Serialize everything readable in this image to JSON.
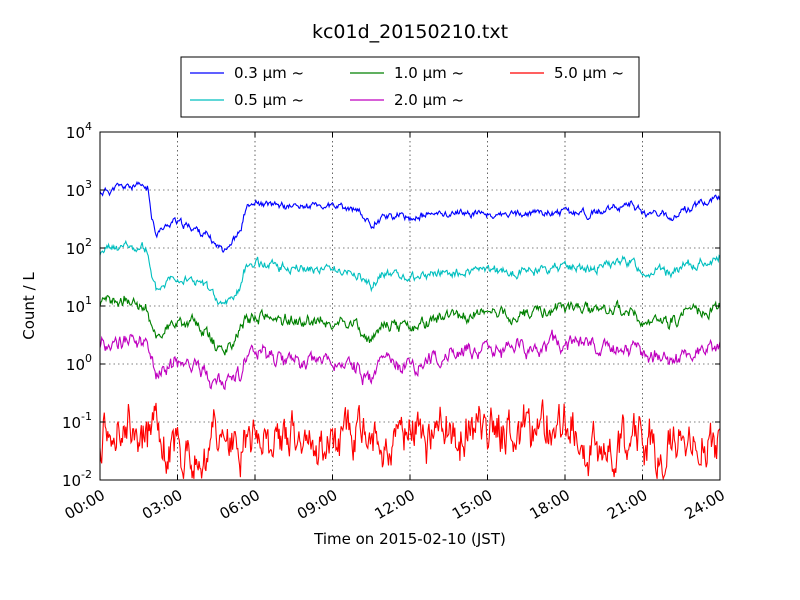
{
  "chart_data": {
    "type": "line",
    "title": "kc01d_20150210.txt",
    "xlabel": "Time on 2015-02-10 (JST)",
    "ylabel": "Count / L",
    "yscale": "log",
    "xlim": [
      "00:00",
      "24:00"
    ],
    "ylim": [
      0.01,
      10000
    ],
    "x_tick_labels": [
      "00:00",
      "03:00",
      "06:00",
      "09:00",
      "12:00",
      "15:00",
      "18:00",
      "21:00",
      "24:00"
    ],
    "y_tick_labels": [
      {
        "base": "10",
        "exp": "-2"
      },
      {
        "base": "10",
        "exp": "-1"
      },
      {
        "base": "10",
        "exp": "0"
      },
      {
        "base": "10",
        "exp": "1"
      },
      {
        "base": "10",
        "exp": "2"
      },
      {
        "base": "10",
        "exp": "3"
      },
      {
        "base": "10",
        "exp": "4"
      }
    ],
    "grid": true,
    "legend_position": "top",
    "series": [
      {
        "name": "0.3 μm ~",
        "color": "#0000ff",
        "noise": 0.05,
        "seed": 11,
        "x": [
          "00:00",
          "00:30",
          "01:00",
          "01:30",
          "01:50",
          "02:00",
          "02:10",
          "02:30",
          "02:50",
          "03:10",
          "03:40",
          "04:10",
          "04:30",
          "04:45",
          "05:05",
          "05:25",
          "05:40",
          "06:00",
          "07:00",
          "08:00",
          "09:00",
          "10:00",
          "10:30",
          "11:00",
          "12:00",
          "13:00",
          "14:00",
          "15:00",
          "16:00",
          "17:00",
          "18:00",
          "19:00",
          "20:00",
          "20:30",
          "21:00",
          "22:00",
          "23:00",
          "24:00"
        ],
        "y": [
          900,
          1050,
          1150,
          1100,
          1080,
          380,
          190,
          220,
          300,
          250,
          220,
          160,
          110,
          100,
          130,
          180,
          520,
          560,
          520,
          530,
          520,
          420,
          250,
          380,
          330,
          380,
          410,
          380,
          360,
          400,
          420,
          390,
          460,
          650,
          420,
          330,
          530,
          800
        ]
      },
      {
        "name": "0.5 μm ~",
        "color": "#00bfbf",
        "noise": 0.06,
        "seed": 23,
        "x": [
          "00:00",
          "00:30",
          "01:00",
          "01:30",
          "01:50",
          "02:00",
          "02:10",
          "02:30",
          "02:50",
          "03:10",
          "03:40",
          "04:10",
          "04:30",
          "04:45",
          "05:05",
          "05:25",
          "05:40",
          "06:00",
          "07:00",
          "08:00",
          "09:00",
          "10:00",
          "10:30",
          "11:00",
          "12:00",
          "13:00",
          "14:00",
          "15:00",
          "16:00",
          "17:00",
          "18:00",
          "19:00",
          "20:00",
          "20:30",
          "21:00",
          "22:00",
          "23:00",
          "24:00"
        ],
        "y": [
          80,
          100,
          105,
          100,
          95,
          30,
          18,
          25,
          38,
          30,
          28,
          20,
          12,
          10,
          14,
          20,
          50,
          55,
          48,
          45,
          45,
          35,
          20,
          35,
          30,
          35,
          38,
          40,
          38,
          45,
          50,
          45,
          55,
          60,
          40,
          38,
          50,
          70
        ]
      },
      {
        "name": "1.0 μm ~",
        "color": "#008000",
        "noise": 0.08,
        "seed": 37,
        "x": [
          "00:00",
          "00:30",
          "01:00",
          "01:30",
          "01:50",
          "02:00",
          "02:10",
          "02:30",
          "02:50",
          "03:10",
          "03:40",
          "04:10",
          "04:30",
          "04:45",
          "05:05",
          "05:25",
          "05:40",
          "06:00",
          "07:00",
          "08:00",
          "09:00",
          "10:00",
          "10:30",
          "11:00",
          "12:00",
          "13:00",
          "14:00",
          "15:00",
          "16:00",
          "17:00",
          "18:00",
          "19:00",
          "20:00",
          "20:30",
          "21:00",
          "22:00",
          "23:00",
          "24:00"
        ],
        "y": [
          9,
          11,
          12,
          11,
          10,
          4,
          3,
          4,
          5,
          5,
          5,
          3,
          2,
          1.8,
          2.5,
          3.5,
          6,
          6.5,
          6,
          5.5,
          5.5,
          4,
          2.5,
          5,
          4.5,
          6,
          7,
          7.5,
          7,
          8,
          9,
          8,
          8,
          7,
          5,
          5,
          7,
          9
        ]
      },
      {
        "name": "2.0 μm ~",
        "color": "#bf00bf",
        "noise": 0.1,
        "seed": 53,
        "x": [
          "00:00",
          "00:30",
          "01:00",
          "01:30",
          "01:50",
          "02:00",
          "02:10",
          "02:30",
          "02:50",
          "03:10",
          "03:40",
          "04:10",
          "04:30",
          "04:45",
          "05:05",
          "05:25",
          "05:40",
          "06:00",
          "07:00",
          "08:00",
          "09:00",
          "10:00",
          "10:30",
          "11:00",
          "12:00",
          "13:00",
          "14:00",
          "15:00",
          "16:00",
          "17:00",
          "18:00",
          "19:00",
          "20:00",
          "20:30",
          "21:00",
          "22:00",
          "23:00",
          "24:00"
        ],
        "y": [
          2.2,
          2.5,
          2.5,
          2.4,
          2.3,
          1.0,
          0.7,
          0.8,
          1.1,
          1.0,
          1.0,
          0.7,
          0.5,
          0.4,
          0.55,
          0.7,
          1.2,
          1.3,
          1.2,
          1.1,
          1.1,
          0.8,
          0.5,
          1.1,
          1.0,
          1.3,
          1.6,
          1.7,
          1.8,
          2.0,
          2.3,
          2.0,
          1.9,
          1.6,
          1.3,
          1.3,
          1.6,
          2.1
        ]
      },
      {
        "name": "5.0 μm ~",
        "color": "#ff0000",
        "noise": 0.3,
        "seed": 71,
        "x": [
          "00:00",
          "01:00",
          "02:00",
          "03:00",
          "04:00",
          "05:00",
          "06:00",
          "09:00",
          "12:00",
          "15:00",
          "17:30",
          "18:00",
          "18:30",
          "21:00",
          "24:00"
        ],
        "y": [
          0.08,
          0.09,
          0.05,
          0.04,
          0.035,
          0.035,
          0.04,
          0.045,
          0.06,
          0.065,
          0.07,
          0.1,
          0.06,
          0.04,
          0.05
        ]
      }
    ]
  }
}
